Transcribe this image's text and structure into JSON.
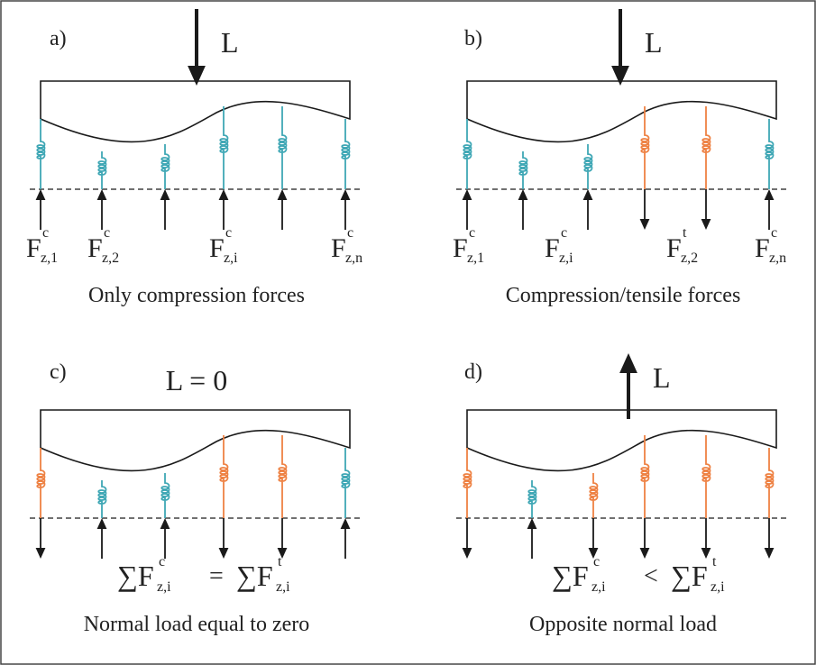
{
  "panels": [
    {
      "label": "a)",
      "load": "L",
      "forces": [
        {
          "base": "F",
          "sup": "c",
          "sub": "z,1"
        },
        {
          "base": "F",
          "sup": "c",
          "sub": "z,2"
        },
        {
          "base": "F",
          "sup": "c",
          "sub": "z,i"
        },
        {
          "base": "F",
          "sup": "c",
          "sub": "z,n"
        }
      ],
      "caption": "Only compression forces"
    },
    {
      "label": "b)",
      "load": "L",
      "forces": [
        {
          "base": "F",
          "sup": "c",
          "sub": "z,1"
        },
        {
          "base": "F",
          "sup": "c",
          "sub": "z,i"
        },
        {
          "base": "F",
          "sup": "t",
          "sub": "z,2"
        },
        {
          "base": "F",
          "sup": "c",
          "sub": "z,n"
        }
      ],
      "caption": "Compression/tensile forces"
    },
    {
      "label": "c)",
      "load": "L = 0",
      "equation": {
        "left": {
          "base": "∑F",
          "sup": "c",
          "sub": "z,i"
        },
        "op": "=",
        "right": {
          "base": "∑F",
          "sup": "t",
          "sub": "z,i"
        }
      },
      "caption": "Normal load equal to zero"
    },
    {
      "label": "d)",
      "load": "L",
      "equation": {
        "left": {
          "base": "∑F",
          "sup": "c",
          "sub": "z,i"
        },
        "op": "<",
        "right": {
          "base": "∑F",
          "sup": "t",
          "sub": "z,i"
        }
      },
      "caption": "Opposite normal load"
    }
  ]
}
